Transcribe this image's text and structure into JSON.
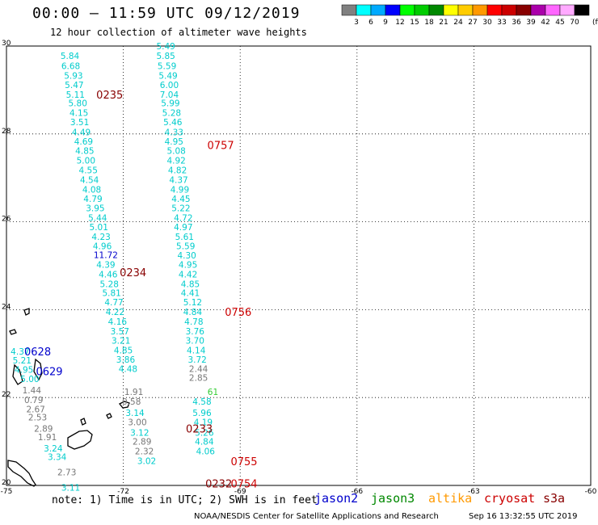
{
  "header": {
    "title": "00:00 – 11:59 UTC 09/12/2019",
    "subtitle": "12 hour collection of altimeter wave heights"
  },
  "colors": {
    "grid": "#000000",
    "jason2": "#0000cc",
    "jason3": "#008800",
    "altika": "#ff9900",
    "cryosat": "#cc0000",
    "s3a": "#880000",
    "land": "#000000",
    "val_cyan": "#00cccc",
    "val_blue": "#0000cc",
    "val_gray": "#777777",
    "val_green": "#33cc33"
  },
  "legend": {
    "unit": "(ft)",
    "ticks": [
      "3",
      "6",
      "9",
      "12",
      "15",
      "18",
      "21",
      "24",
      "27",
      "30",
      "33",
      "36",
      "39",
      "42",
      "45",
      "70"
    ],
    "swatches": [
      "#808080",
      "#00ffff",
      "#00aaff",
      "#0000ff",
      "#00ff00",
      "#00cc00",
      "#008800",
      "#ffff00",
      "#ffcc00",
      "#ff9900",
      "#ff0000",
      "#cc0000",
      "#880000",
      "#aa00aa",
      "#ff66ff",
      "#ffaaff",
      "#000000"
    ]
  },
  "map": {
    "lon_range": [
      -75,
      -60
    ],
    "lat_range": [
      20,
      30
    ],
    "x_ticks": [
      {
        "value": -75,
        "label": "-75"
      },
      {
        "value": -72,
        "label": "-72"
      },
      {
        "value": -69,
        "label": "-69"
      },
      {
        "value": -66,
        "label": "-66"
      },
      {
        "value": -63,
        "label": "-63"
      },
      {
        "value": -60,
        "label": "-60"
      }
    ],
    "y_ticks": [
      {
        "value": 30,
        "label": "30"
      },
      {
        "value": 28,
        "label": "28"
      },
      {
        "value": 26,
        "label": "26"
      },
      {
        "value": 24,
        "label": "24"
      },
      {
        "value": 22,
        "label": "22"
      },
      {
        "value": 20,
        "label": "20"
      }
    ],
    "time_labels": [
      {
        "text": "0235",
        "lon": -72.35,
        "lat": 28.9,
        "color": "#880000"
      },
      {
        "text": "0234",
        "lon": -71.75,
        "lat": 24.85,
        "color": "#880000"
      },
      {
        "text": "0233",
        "lon": -70.05,
        "lat": 21.3,
        "color": "#880000"
      },
      {
        "text": "0232",
        "lon": -69.55,
        "lat": 20.05,
        "color": "#880000"
      },
      {
        "text": "0757",
        "lon": -69.5,
        "lat": 27.75,
        "color": "#cc0000"
      },
      {
        "text": "0756",
        "lon": -69.05,
        "lat": 23.95,
        "color": "#cc0000"
      },
      {
        "text": "0755",
        "lon": -68.9,
        "lat": 20.55,
        "color": "#cc0000"
      },
      {
        "text": "0754",
        "lon": -68.9,
        "lat": 20.05,
        "color": "#cc0000"
      },
      {
        "text": "0628",
        "lon": -74.2,
        "lat": 23.05,
        "color": "#0000cc"
      },
      {
        "text": "0629",
        "lon": -73.9,
        "lat": 22.6,
        "color": "#0000cc"
      }
    ],
    "tracks": [
      {
        "name": "track-a",
        "points": [
          {
            "v": "5.84",
            "lon": -73.37,
            "lat": 29.78
          },
          {
            "v": "6.68",
            "lon": -73.35,
            "lat": 29.55
          },
          {
            "v": "5.93",
            "lon": -73.28,
            "lat": 29.33
          },
          {
            "v": "5.47",
            "lon": -73.26,
            "lat": 29.12
          },
          {
            "v": "5.11",
            "lon": -73.23,
            "lat": 28.9
          },
          {
            "v": "5.80",
            "lon": -73.17,
            "lat": 28.7
          },
          {
            "v": "4.15",
            "lon": -73.14,
            "lat": 28.48
          },
          {
            "v": "3.51",
            "lon": -73.12,
            "lat": 28.27
          },
          {
            "v": "4.49",
            "lon": -73.08,
            "lat": 28.04
          },
          {
            "v": "4.69",
            "lon": -73.02,
            "lat": 27.83
          },
          {
            "v": "4.85",
            "lon": -72.99,
            "lat": 27.62
          },
          {
            "v": "5.00",
            "lon": -72.96,
            "lat": 27.4
          },
          {
            "v": "4.55",
            "lon": -72.9,
            "lat": 27.18
          },
          {
            "v": "4.54",
            "lon": -72.87,
            "lat": 26.96
          },
          {
            "v": "4.08",
            "lon": -72.81,
            "lat": 26.74
          },
          {
            "v": "4.79",
            "lon": -72.78,
            "lat": 26.53
          },
          {
            "v": "3.95",
            "lon": -72.72,
            "lat": 26.31
          },
          {
            "v": "5.44",
            "lon": -72.66,
            "lat": 26.09
          },
          {
            "v": "5.01",
            "lon": -72.63,
            "lat": 25.88
          },
          {
            "v": "4.23",
            "lon": -72.57,
            "lat": 25.66
          },
          {
            "v": "4.96",
            "lon": -72.54,
            "lat": 25.45
          },
          {
            "v": "11.72",
            "lon": -72.45,
            "lat": 25.25,
            "c": "#0000cc"
          },
          {
            "v": "4.39",
            "lon": -72.45,
            "lat": 25.03
          },
          {
            "v": "4.46",
            "lon": -72.39,
            "lat": 24.81
          },
          {
            "v": "5.28",
            "lon": -72.36,
            "lat": 24.59
          },
          {
            "v": "5.81",
            "lon": -72.3,
            "lat": 24.38
          },
          {
            "v": "4.77",
            "lon": -72.24,
            "lat": 24.17
          },
          {
            "v": "4.22",
            "lon": -72.21,
            "lat": 23.95
          },
          {
            "v": "4.16",
            "lon": -72.15,
            "lat": 23.73
          },
          {
            "v": "3.57",
            "lon": -72.09,
            "lat": 23.51
          },
          {
            "v": "3.21",
            "lon": -72.06,
            "lat": 23.3
          },
          {
            "v": "4.85",
            "lon": -72.0,
            "lat": 23.08
          },
          {
            "v": "3.86",
            "lon": -71.94,
            "lat": 22.87
          },
          {
            "v": "4.48",
            "lon": -71.88,
            "lat": 22.66
          },
          {
            "v": "1.91",
            "lon": -71.73,
            "lat": 22.13,
            "c": "#777777"
          },
          {
            "v": "0.58",
            "lon": -71.79,
            "lat": 21.91,
            "c": "#777777"
          },
          {
            "v": "3.14",
            "lon": -71.7,
            "lat": 21.65
          },
          {
            "v": "3.00",
            "lon": -71.64,
            "lat": 21.44,
            "c": "#777777"
          },
          {
            "v": "3.12",
            "lon": -71.58,
            "lat": 21.2
          },
          {
            "v": "2.89",
            "lon": -71.52,
            "lat": 21.0,
            "c": "#777777"
          },
          {
            "v": "2.32",
            "lon": -71.46,
            "lat": 20.78,
            "c": "#777777"
          },
          {
            "v": "3.02",
            "lon": -71.4,
            "lat": 20.56
          }
        ]
      },
      {
        "name": "track-b",
        "points": [
          {
            "v": "5.49",
            "lon": -70.91,
            "lat": 30.0
          },
          {
            "v": "5.85",
            "lon": -70.91,
            "lat": 29.78
          },
          {
            "v": "5.59",
            "lon": -70.88,
            "lat": 29.55
          },
          {
            "v": "5.49",
            "lon": -70.85,
            "lat": 29.33
          },
          {
            "v": "6.00",
            "lon": -70.82,
            "lat": 29.12
          },
          {
            "v": "7.04",
            "lon": -70.82,
            "lat": 28.9
          },
          {
            "v": "5.99",
            "lon": -70.79,
            "lat": 28.7
          },
          {
            "v": "5.28",
            "lon": -70.76,
            "lat": 28.48
          },
          {
            "v": "5.46",
            "lon": -70.73,
            "lat": 28.27
          },
          {
            "v": "4.33",
            "lon": -70.7,
            "lat": 28.04
          },
          {
            "v": "4.95",
            "lon": -70.7,
            "lat": 27.83
          },
          {
            "v": "5.08",
            "lon": -70.64,
            "lat": 27.62
          },
          {
            "v": "4.92",
            "lon": -70.64,
            "lat": 27.4
          },
          {
            "v": "4.82",
            "lon": -70.61,
            "lat": 27.18
          },
          {
            "v": "4.37",
            "lon": -70.58,
            "lat": 26.96
          },
          {
            "v": "4.99",
            "lon": -70.55,
            "lat": 26.74
          },
          {
            "v": "4.45",
            "lon": -70.52,
            "lat": 26.53
          },
          {
            "v": "5.22",
            "lon": -70.52,
            "lat": 26.31
          },
          {
            "v": "4.72",
            "lon": -70.46,
            "lat": 26.09
          },
          {
            "v": "4.97",
            "lon": -70.46,
            "lat": 25.88
          },
          {
            "v": "5.61",
            "lon": -70.43,
            "lat": 25.66
          },
          {
            "v": "5.59",
            "lon": -70.4,
            "lat": 25.45
          },
          {
            "v": "4.30",
            "lon": -70.37,
            "lat": 25.24
          },
          {
            "v": "4.95",
            "lon": -70.34,
            "lat": 25.03
          },
          {
            "v": "4.42",
            "lon": -70.34,
            "lat": 24.81
          },
          {
            "v": "4.85",
            "lon": -70.28,
            "lat": 24.59
          },
          {
            "v": "4.41",
            "lon": -70.28,
            "lat": 24.38
          },
          {
            "v": "5.12",
            "lon": -70.22,
            "lat": 24.17
          },
          {
            "v": "4.84",
            "lon": -70.22,
            "lat": 23.95
          },
          {
            "v": "4.78",
            "lon": -70.19,
            "lat": 23.73
          },
          {
            "v": "3.76",
            "lon": -70.16,
            "lat": 23.51
          },
          {
            "v": "3.70",
            "lon": -70.16,
            "lat": 23.3
          },
          {
            "v": "4.14",
            "lon": -70.13,
            "lat": 23.08
          },
          {
            "v": "3.72",
            "lon": -70.1,
            "lat": 22.87
          },
          {
            "v": "2.44",
            "lon": -70.07,
            "lat": 22.66,
            "c": "#777777"
          },
          {
            "v": "2.85",
            "lon": -70.07,
            "lat": 22.45,
            "c": "#777777"
          },
          {
            "v": "61",
            "lon": -69.7,
            "lat": 22.13,
            "c": "#33cc33"
          },
          {
            "v": "4.58",
            "lon": -69.98,
            "lat": 21.91
          },
          {
            "v": "5.96",
            "lon": -69.98,
            "lat": 21.65
          },
          {
            "v": "4.19",
            "lon": -69.95,
            "lat": 21.44
          },
          {
            "v": "5.26",
            "lon": -69.92,
            "lat": 21.2
          },
          {
            "v": "4.84",
            "lon": -69.92,
            "lat": 21.0
          },
          {
            "v": "4.06",
            "lon": -69.89,
            "lat": 20.78
          }
        ]
      },
      {
        "name": "track-c",
        "points": [
          {
            "v": "4.37",
            "lon": -74.65,
            "lat": 23.05
          },
          {
            "v": "5.21",
            "lon": -74.6,
            "lat": 22.85
          },
          {
            "v": "4.95",
            "lon": -74.55,
            "lat": 22.64
          },
          {
            "v": "5.00",
            "lon": -74.4,
            "lat": 22.43
          },
          {
            "v": "1.44",
            "lon": -74.35,
            "lat": 22.17,
            "c": "#777777"
          },
          {
            "v": "0.79",
            "lon": -74.3,
            "lat": 21.95,
            "c": "#777777"
          },
          {
            "v": "2.67",
            "lon": -74.25,
            "lat": 21.74,
            "c": "#777777"
          },
          {
            "v": "2.53",
            "lon": -74.2,
            "lat": 21.55,
            "c": "#777777"
          },
          {
            "v": "2.89",
            "lon": -74.05,
            "lat": 21.3,
            "c": "#777777"
          },
          {
            "v": "1.91",
            "lon": -73.95,
            "lat": 21.1,
            "c": "#777777"
          },
          {
            "v": "3.24",
            "lon": -73.8,
            "lat": 20.85
          },
          {
            "v": "3.34",
            "lon": -73.7,
            "lat": 20.65
          },
          {
            "v": "2.73",
            "lon": -73.45,
            "lat": 20.3,
            "c": "#777777"
          },
          {
            "v": "3.11",
            "lon": -73.35,
            "lat": 19.95
          }
        ]
      }
    ]
  },
  "note": "note: 1) Time is in UTC; 2) SWH is in feet",
  "satellites": [
    {
      "name": "jason2",
      "color": "#0000cc"
    },
    {
      "name": "jason3",
      "color": "#008800"
    },
    {
      "name": "altika",
      "color": "#ff9900"
    },
    {
      "name": "cryosat",
      "color": "#cc0000"
    },
    {
      "name": "s3a",
      "color": "#880000"
    }
  ],
  "credit": "NOAA/NESDIS Center for Satellite Applications and Research",
  "timestamp": "Sep 16 13:32:55 UTC 2019"
}
